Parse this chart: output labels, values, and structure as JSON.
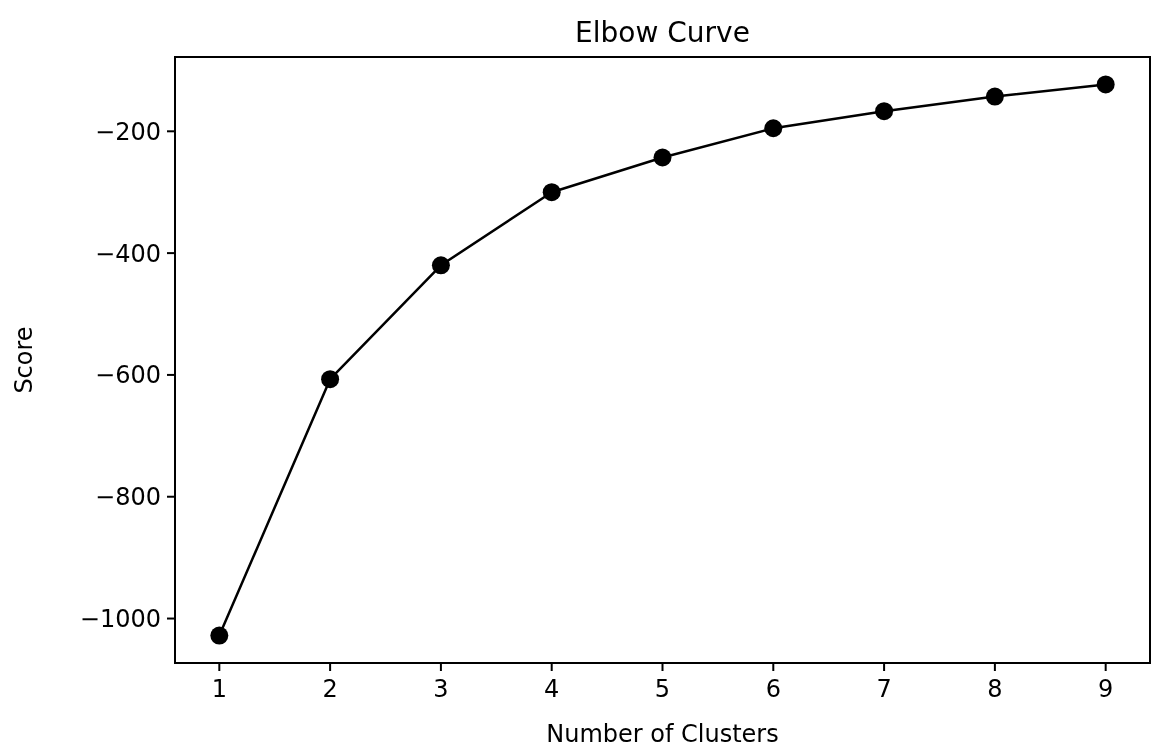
{
  "chart_data": {
    "type": "line",
    "title": "Elbow Curve",
    "xlabel": "Number of Clusters",
    "ylabel": "Score",
    "x": [
      1,
      2,
      3,
      4,
      5,
      6,
      7,
      8,
      9
    ],
    "series": [
      {
        "color": "#000000",
        "values": [
          -1028,
          -607,
          -420,
          -300,
          -243,
          -195,
          -167,
          -143,
          -123
        ]
      }
    ],
    "xlim": [
      0.6,
      9.4
    ],
    "xticks": [
      1,
      2,
      3,
      4,
      5,
      6,
      7,
      8,
      9
    ],
    "ylim": [
      -1073,
      -78
    ],
    "yticks": [
      {
        "value": -1000,
        "label": "−1000"
      },
      {
        "value": -800,
        "label": "−800"
      },
      {
        "value": -600,
        "label": "−600"
      },
      {
        "value": -400,
        "label": "−400"
      },
      {
        "value": -200,
        "label": "−200"
      }
    ],
    "marker": "circle",
    "line_style": "solid"
  }
}
